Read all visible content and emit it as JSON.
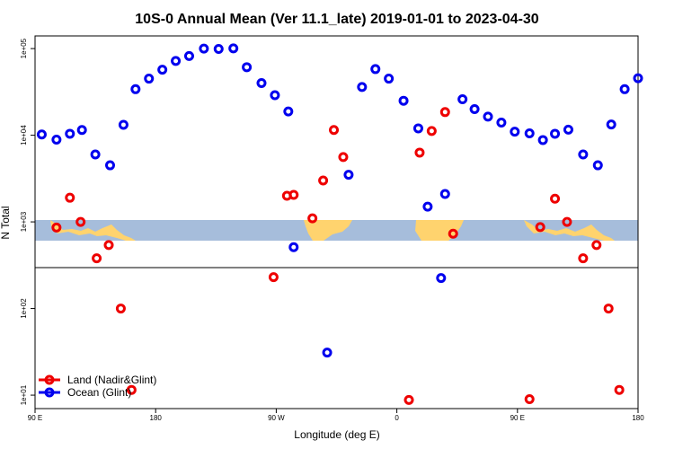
{
  "chart_data": {
    "type": "scatter",
    "title": "10S-0 Annual Mean (Ver 11.1_late)   2019-01-01 to 2023-04-30",
    "xlabel": "Longitude (deg E)",
    "ylabel": "N Total",
    "yscale": "log",
    "ylim": [
      7,
      140000
    ],
    "x_tick_labels": [
      "90 E",
      "180",
      "90 W",
      "0",
      "90 E",
      "180"
    ],
    "x_tick_positions": [
      90,
      180,
      270,
      360,
      450,
      540
    ],
    "y_tick_labels": [
      "1e+01",
      "1e+02",
      "1e+03",
      "1e+04",
      "1e+05"
    ],
    "y_tick_values": [
      10,
      100,
      1000,
      10000,
      100000
    ],
    "xlim": [
      90,
      540
    ],
    "legend_position": "bottom-left",
    "series": [
      {
        "name": "Land (Nadir&Glint)",
        "color": "#ee0000",
        "points": [
          {
            "x": 106,
            "y": 860
          },
          {
            "x": 116,
            "y": 1900
          },
          {
            "x": 124,
            "y": 1000
          },
          {
            "x": 136,
            "y": 380
          },
          {
            "x": 145,
            "y": 540
          },
          {
            "x": 154,
            "y": 100
          },
          {
            "x": 162,
            "y": 11.5
          },
          {
            "x": 268,
            "y": 230
          },
          {
            "x": 278,
            "y": 2000
          },
          {
            "x": 283,
            "y": 2050
          },
          {
            "x": 297,
            "y": 1100
          },
          {
            "x": 305,
            "y": 3000
          },
          {
            "x": 313,
            "y": 11500
          },
          {
            "x": 320,
            "y": 5600
          },
          {
            "x": 369,
            "y": 8.8
          },
          {
            "x": 377,
            "y": 6300
          },
          {
            "x": 386,
            "y": 11200
          },
          {
            "x": 396,
            "y": 18500
          },
          {
            "x": 402,
            "y": 730
          },
          {
            "x": 459,
            "y": 9
          },
          {
            "x": 467,
            "y": 870
          },
          {
            "x": 478,
            "y": 1850
          },
          {
            "x": 487,
            "y": 1000
          },
          {
            "x": 499,
            "y": 380
          },
          {
            "x": 509,
            "y": 540
          },
          {
            "x": 518,
            "y": 100
          },
          {
            "x": 526,
            "y": 11.5
          }
        ]
      },
      {
        "name": "Ocean (Glint)",
        "color": "#0000ee",
        "points": [
          {
            "x": 95,
            "y": 10200
          },
          {
            "x": 106,
            "y": 8900
          },
          {
            "x": 116,
            "y": 10400
          },
          {
            "x": 125,
            "y": 11500
          },
          {
            "x": 135,
            "y": 6000
          },
          {
            "x": 146,
            "y": 4500
          },
          {
            "x": 156,
            "y": 13200
          },
          {
            "x": 165,
            "y": 34000
          },
          {
            "x": 175,
            "y": 45000
          },
          {
            "x": 185,
            "y": 57000
          },
          {
            "x": 195,
            "y": 72000
          },
          {
            "x": 205,
            "y": 82000
          },
          {
            "x": 216,
            "y": 100000
          },
          {
            "x": 227,
            "y": 99000
          },
          {
            "x": 238,
            "y": 100500
          },
          {
            "x": 248,
            "y": 61000
          },
          {
            "x": 259,
            "y": 40000
          },
          {
            "x": 269,
            "y": 29000
          },
          {
            "x": 279,
            "y": 18800
          },
          {
            "x": 283,
            "y": 510
          },
          {
            "x": 308,
            "y": 31
          },
          {
            "x": 324,
            "y": 3500
          },
          {
            "x": 334,
            "y": 36000
          },
          {
            "x": 344,
            "y": 58000
          },
          {
            "x": 354,
            "y": 45000
          },
          {
            "x": 365,
            "y": 25000
          },
          {
            "x": 376,
            "y": 12000
          },
          {
            "x": 383,
            "y": 1500
          },
          {
            "x": 393,
            "y": 225
          },
          {
            "x": 396,
            "y": 2100
          },
          {
            "x": 409,
            "y": 26000
          },
          {
            "x": 418,
            "y": 20000
          },
          {
            "x": 428,
            "y": 16400
          },
          {
            "x": 438,
            "y": 14000
          },
          {
            "x": 448,
            "y": 11000
          },
          {
            "x": 459,
            "y": 10500
          },
          {
            "x": 469,
            "y": 8800
          },
          {
            "x": 478,
            "y": 10400
          },
          {
            "x": 488,
            "y": 11600
          },
          {
            "x": 499,
            "y": 6000
          },
          {
            "x": 510,
            "y": 4500
          },
          {
            "x": 520,
            "y": 13300
          },
          {
            "x": 530,
            "y": 34000
          },
          {
            "x": 540,
            "y": 45500
          }
        ]
      }
    ]
  }
}
